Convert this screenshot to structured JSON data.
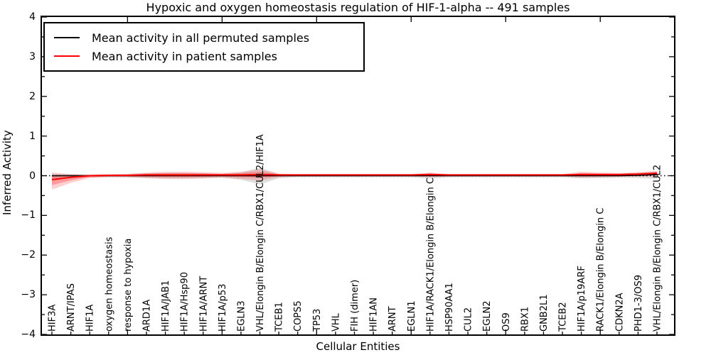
{
  "figure": {
    "title": "Hypoxic and oxygen homeostasis regulation of HIF-1-alpha -- 491 samples",
    "xlabel": "Cellular Entities",
    "ylabel": "Inferred Activity"
  },
  "legend": {
    "entries": [
      {
        "label": "Mean activity in all permuted samples",
        "color": "#000000"
      },
      {
        "label": "Mean activity in patient samples",
        "color": "#ff0000"
      }
    ]
  },
  "chart_data": {
    "type": "line",
    "title": "Hypoxic and oxygen homeostasis regulation of HIF-1-alpha -- 491 samples",
    "xlabel": "Cellular Entities",
    "ylabel": "Inferred Activity",
    "ylim": [
      -4,
      4
    ],
    "grid": false,
    "legend_position": "upper left",
    "y_tick_values": [
      4,
      3,
      2,
      1,
      0,
      -1,
      -2,
      -3,
      -4
    ],
    "y_tick_labels": [
      "4",
      "3",
      "2",
      "1",
      "0",
      "−1",
      "−2",
      "−3",
      "−4"
    ],
    "categories": [
      "HIF3A",
      "ARNT/IPAS",
      "HIF1A",
      "oxygen homeostasis",
      "response to hypoxia",
      "ARD1A",
      "HIF1A/JAB1",
      "HIF1A/Hsp90",
      "HIF1A/ARNT",
      "HIF1A/p53",
      "EGLN3",
      "VHL/Elongin B/Elongin C/RBX1/CUL2/HIF1A",
      "TCEB1",
      "COPS5",
      "TP53",
      "VHL",
      "FIH (dimer)",
      "HIF1AN",
      "ARNT",
      "EGLN1",
      "HIF1A/RACK1/Elongin B/Elongin C",
      "HSP90AA1",
      "CUL2",
      "EGLN2",
      "OS9",
      "RBX1",
      "GNB2L1",
      "TCEB2",
      "HIF1A/p19ARF",
      "RACK1/Elongin B/Elongin C",
      "CDKN2A",
      "PHD1-3/OS9",
      "VHL/Elongin B/Elongin C/RBX1/CUL2"
    ],
    "series": [
      {
        "name": "Mean activity in all permuted samples",
        "color": "#000000",
        "values": [
          0,
          0,
          0,
          0,
          0,
          0,
          0,
          0,
          0,
          0,
          0,
          0,
          0,
          0,
          0,
          0,
          0,
          0,
          0,
          0,
          0,
          0,
          0,
          0,
          0,
          0,
          0,
          0,
          0,
          0,
          0,
          0.01,
          0.03
        ]
      },
      {
        "name": "Mean activity in patient samples",
        "color": "#ff0000",
        "values": [
          -0.1,
          -0.04,
          0.0,
          0.01,
          0.01,
          0.02,
          0.02,
          0.02,
          0.02,
          0.02,
          0.02,
          0.03,
          0.02,
          0.02,
          0.02,
          0.02,
          0.02,
          0.02,
          0.02,
          0.02,
          0.03,
          0.02,
          0.02,
          0.02,
          0.02,
          0.02,
          0.02,
          0.02,
          0.03,
          0.03,
          0.03,
          0.04,
          0.06
        ]
      }
    ],
    "bands": [
      {
        "name": "permuted-samples-confidence-band",
        "color": "rgba(80,80,80,0.18)",
        "upper": [
          0.05,
          0.04,
          0.03,
          0.03,
          0.04,
          0.06,
          0.07,
          0.07,
          0.06,
          0.05,
          0.08,
          0.2,
          0.05,
          0.03,
          0.03,
          0.03,
          0.03,
          0.03,
          0.03,
          0.03,
          0.06,
          0.03,
          0.03,
          0.03,
          0.03,
          0.03,
          0.03,
          0.03,
          0.06,
          0.05,
          0.05,
          0.07,
          0.1
        ],
        "lower": [
          -0.08,
          -0.05,
          -0.04,
          -0.03,
          -0.04,
          -0.06,
          -0.07,
          -0.07,
          -0.06,
          -0.05,
          -0.1,
          -0.22,
          -0.06,
          -0.04,
          -0.04,
          -0.04,
          -0.04,
          -0.04,
          -0.04,
          -0.04,
          -0.07,
          -0.04,
          -0.04,
          -0.04,
          -0.04,
          -0.04,
          -0.04,
          -0.04,
          -0.07,
          -0.06,
          -0.05,
          -0.06,
          -0.08
        ]
      },
      {
        "name": "patient-samples-confidence-band",
        "color": "rgba(255,40,40,0.22)",
        "upper": [
          0.08,
          0.04,
          0.03,
          0.04,
          0.05,
          0.08,
          0.1,
          0.1,
          0.09,
          0.07,
          0.1,
          0.16,
          0.05,
          0.04,
          0.04,
          0.04,
          0.04,
          0.04,
          0.04,
          0.04,
          0.08,
          0.04,
          0.04,
          0.04,
          0.04,
          0.04,
          0.04,
          0.04,
          0.1,
          0.08,
          0.07,
          0.09,
          0.12
        ],
        "lower": [
          -0.35,
          -0.18,
          -0.06,
          -0.04,
          -0.04,
          -0.06,
          -0.08,
          -0.08,
          -0.07,
          -0.05,
          -0.08,
          -0.12,
          -0.04,
          -0.02,
          -0.02,
          -0.02,
          -0.02,
          -0.02,
          -0.02,
          -0.02,
          -0.04,
          -0.02,
          -0.02,
          -0.02,
          -0.02,
          -0.02,
          -0.02,
          -0.02,
          -0.05,
          -0.04,
          -0.03,
          -0.02,
          -0.02
        ]
      }
    ],
    "zero_line": true
  }
}
